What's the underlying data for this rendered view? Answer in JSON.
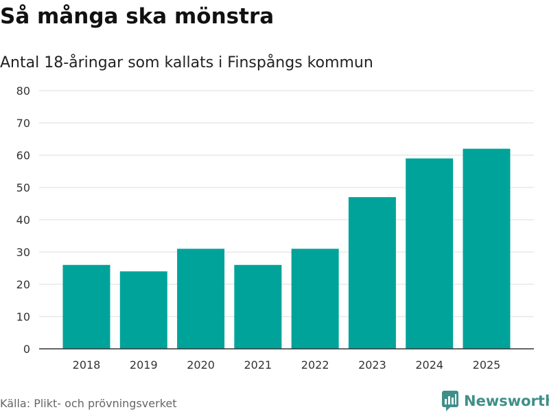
{
  "title": "Så många ska mönstra",
  "subtitle": "Antal 18-åringar som kallats i Finspångs kommun",
  "source": "Källa: Plikt- och prövningsverket",
  "brand": {
    "name": "Newsworthy",
    "icon": "newsworthy-logo-icon",
    "color": "#3f8f89"
  },
  "colors": {
    "bar": "#00a39a",
    "grid": "#dddddd",
    "axis": "#333333",
    "tick_text": "#333333"
  },
  "chart_data": {
    "type": "bar",
    "title": "Så många ska mönstra",
    "subtitle": "Antal 18-åringar som kallats i Finspångs kommun",
    "xlabel": "",
    "ylabel": "",
    "categories": [
      "2018",
      "2019",
      "2020",
      "2021",
      "2022",
      "2023",
      "2024",
      "2025"
    ],
    "values": [
      26,
      24,
      31,
      26,
      31,
      47,
      59,
      62
    ],
    "ylim": [
      0,
      80
    ],
    "yticks": [
      0,
      10,
      20,
      30,
      40,
      50,
      60,
      70,
      80
    ],
    "grid": true,
    "legend": "none"
  }
}
